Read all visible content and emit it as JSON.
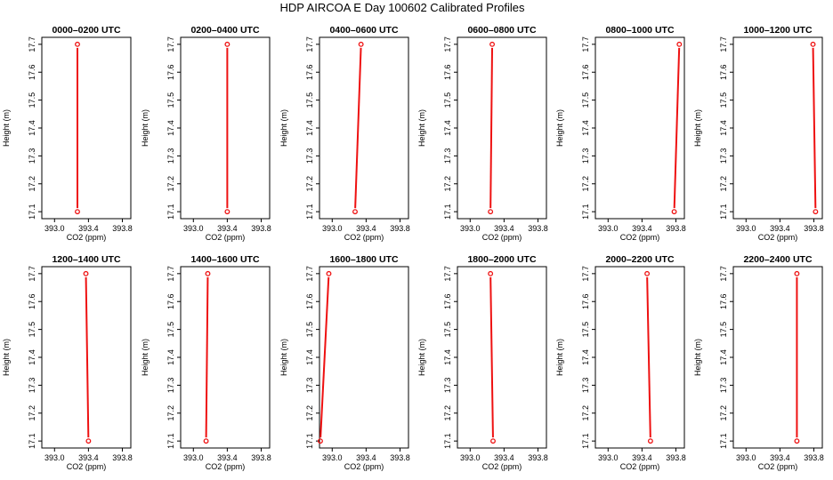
{
  "figure": {
    "title": "HDP AIRCOA E  Day 100602  Calibrated Profiles"
  },
  "colors": {
    "profile": "#ee1111",
    "axes": "#000000",
    "background": "#ffffff"
  },
  "chart_data": [
    {
      "type": "line",
      "title": "0000–0200 UTC",
      "xlabel": "CO2 (ppm)",
      "ylabel": "Height (m)",
      "xlim": [
        392.85,
        393.9
      ],
      "ylim": [
        17.075,
        17.725
      ],
      "xticks": [
        "393.0",
        "393.4",
        "393.8"
      ],
      "yticks": [
        "17.1",
        "17.2",
        "17.3",
        "17.4",
        "17.5",
        "17.6",
        "17.7"
      ],
      "series": [
        {
          "x": [
            393.27,
            393.27
          ],
          "y": [
            17.1,
            17.7
          ]
        }
      ]
    },
    {
      "type": "line",
      "title": "0200–0400 UTC",
      "xlabel": "CO2 (ppm)",
      "ylabel": "Height (m)",
      "xlim": [
        392.85,
        393.9
      ],
      "ylim": [
        17.075,
        17.725
      ],
      "xticks": [
        "393.0",
        "393.4",
        "393.8"
      ],
      "yticks": [
        "17.1",
        "17.2",
        "17.3",
        "17.4",
        "17.5",
        "17.6",
        "17.7"
      ],
      "series": [
        {
          "x": [
            393.4,
            393.4
          ],
          "y": [
            17.1,
            17.7
          ]
        }
      ]
    },
    {
      "type": "line",
      "title": "0400–0600 UTC",
      "xlabel": "CO2 (ppm)",
      "ylabel": "Height (m)",
      "xlim": [
        392.85,
        393.9
      ],
      "ylim": [
        17.075,
        17.725
      ],
      "xticks": [
        "393.0",
        "393.4",
        "393.8"
      ],
      "yticks": [
        "17.1",
        "17.2",
        "17.3",
        "17.4",
        "17.5",
        "17.6",
        "17.7"
      ],
      "series": [
        {
          "x": [
            393.27,
            393.34
          ],
          "y": [
            17.1,
            17.7
          ]
        }
      ]
    },
    {
      "type": "line",
      "title": "0600–0800 UTC",
      "xlabel": "CO2 (ppm)",
      "ylabel": "Height (m)",
      "xlim": [
        392.85,
        393.9
      ],
      "ylim": [
        17.075,
        17.725
      ],
      "xticks": [
        "393.0",
        "393.4",
        "393.8"
      ],
      "yticks": [
        "17.1",
        "17.2",
        "17.3",
        "17.4",
        "17.5",
        "17.6",
        "17.7"
      ],
      "series": [
        {
          "x": [
            393.24,
            393.26
          ],
          "y": [
            17.1,
            17.7
          ]
        }
      ]
    },
    {
      "type": "line",
      "title": "0800–1000 UTC",
      "xlabel": "CO2 (ppm)",
      "ylabel": "Height (m)",
      "xlim": [
        392.85,
        393.9
      ],
      "ylim": [
        17.075,
        17.725
      ],
      "xticks": [
        "393.0",
        "393.4",
        "393.8"
      ],
      "yticks": [
        "17.1",
        "17.2",
        "17.3",
        "17.4",
        "17.5",
        "17.6",
        "17.7"
      ],
      "series": [
        {
          "x": [
            393.78,
            393.84
          ],
          "y": [
            17.1,
            17.7
          ]
        }
      ]
    },
    {
      "type": "line",
      "title": "1000–1200 UTC",
      "xlabel": "CO2 (ppm)",
      "ylabel": "Height (m)",
      "xlim": [
        392.85,
        393.9
      ],
      "ylim": [
        17.075,
        17.725
      ],
      "xticks": [
        "393.0",
        "393.4",
        "393.8"
      ],
      "yticks": [
        "17.1",
        "17.2",
        "17.3",
        "17.4",
        "17.5",
        "17.6",
        "17.7"
      ],
      "series": [
        {
          "x": [
            393.82,
            393.79
          ],
          "y": [
            17.1,
            17.7
          ]
        }
      ]
    },
    {
      "type": "line",
      "title": "1200–1400 UTC",
      "xlabel": "CO2 (ppm)",
      "ylabel": "Height (m)",
      "xlim": [
        392.85,
        393.9
      ],
      "ylim": [
        17.075,
        17.725
      ],
      "xticks": [
        "393.0",
        "393.4",
        "393.8"
      ],
      "yticks": [
        "17.1",
        "17.2",
        "17.3",
        "17.4",
        "17.5",
        "17.6",
        "17.7"
      ],
      "series": [
        {
          "x": [
            393.4,
            393.37
          ],
          "y": [
            17.1,
            17.7
          ]
        }
      ]
    },
    {
      "type": "line",
      "title": "1400–1600 UTC",
      "xlabel": "CO2 (ppm)",
      "ylabel": "Height (m)",
      "xlim": [
        392.85,
        393.9
      ],
      "ylim": [
        17.075,
        17.725
      ],
      "xticks": [
        "393.0",
        "393.4",
        "393.8"
      ],
      "yticks": [
        "17.1",
        "17.2",
        "17.3",
        "17.4",
        "17.5",
        "17.6",
        "17.7"
      ],
      "series": [
        {
          "x": [
            393.15,
            393.17
          ],
          "y": [
            17.1,
            17.7
          ]
        }
      ]
    },
    {
      "type": "line",
      "title": "1600–1800 UTC",
      "xlabel": "CO2 (ppm)",
      "ylabel": "Height (m)",
      "xlim": [
        392.85,
        393.9
      ],
      "ylim": [
        17.075,
        17.725
      ],
      "xticks": [
        "393.0",
        "393.4",
        "393.8"
      ],
      "yticks": [
        "17.1",
        "17.2",
        "17.3",
        "17.4",
        "17.5",
        "17.6",
        "17.7"
      ],
      "series": [
        {
          "x": [
            392.86,
            392.96
          ],
          "y": [
            17.1,
            17.7
          ]
        }
      ]
    },
    {
      "type": "line",
      "title": "1800–2000 UTC",
      "xlabel": "CO2 (ppm)",
      "ylabel": "Height (m)",
      "xlim": [
        392.85,
        393.9
      ],
      "ylim": [
        17.075,
        17.725
      ],
      "xticks": [
        "393.0",
        "393.4",
        "393.8"
      ],
      "yticks": [
        "17.1",
        "17.2",
        "17.3",
        "17.4",
        "17.5",
        "17.6",
        "17.7"
      ],
      "series": [
        {
          "x": [
            393.27,
            393.24
          ],
          "y": [
            17.1,
            17.7
          ]
        }
      ]
    },
    {
      "type": "line",
      "title": "2000–2200 UTC",
      "xlabel": "CO2 (ppm)",
      "ylabel": "Height (m)",
      "xlim": [
        392.85,
        393.9
      ],
      "ylim": [
        17.075,
        17.725
      ],
      "xticks": [
        "393.0",
        "393.4",
        "393.8"
      ],
      "yticks": [
        "17.1",
        "17.2",
        "17.3",
        "17.4",
        "17.5",
        "17.6",
        "17.7"
      ],
      "series": [
        {
          "x": [
            393.5,
            393.46
          ],
          "y": [
            17.1,
            17.7
          ]
        }
      ]
    },
    {
      "type": "line",
      "title": "2200–2400 UTC",
      "xlabel": "CO2 (ppm)",
      "ylabel": "Height (m)",
      "xlim": [
        392.85,
        393.9
      ],
      "ylim": [
        17.075,
        17.725
      ],
      "xticks": [
        "393.0",
        "393.4",
        "393.8"
      ],
      "yticks": [
        "17.1",
        "17.2",
        "17.3",
        "17.4",
        "17.5",
        "17.6",
        "17.7"
      ],
      "series": [
        {
          "x": [
            393.6,
            393.6
          ],
          "y": [
            17.1,
            17.7
          ]
        }
      ]
    }
  ]
}
